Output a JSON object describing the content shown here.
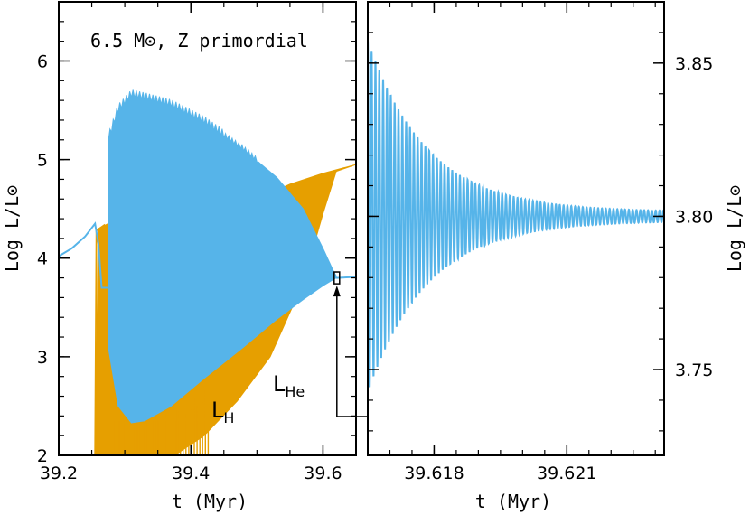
{
  "chart_data": [
    {
      "type": "line",
      "panel": "left",
      "title": "6.5 M⊙, Z primordial",
      "xlabel": "t (Myr)",
      "ylabel": "Log L/L⊙",
      "xlim": [
        39.2,
        39.65
      ],
      "ylim": [
        2.0,
        6.6
      ],
      "xticks": [
        39.2,
        39.4,
        39.6
      ],
      "xtick_labels": [
        "39.2",
        "39.4",
        "39.6"
      ],
      "yticks": [
        2,
        3,
        4,
        5,
        6
      ],
      "ytick_labels": [
        "2",
        "3",
        "4",
        "5",
        "6"
      ],
      "series": [
        {
          "name": "L_He",
          "label_main": "L",
          "label_sub": "He",
          "color": "#56b4e9",
          "baseline": [
            [
              39.2,
              4.02
            ],
            [
              39.22,
              4.1
            ],
            [
              39.24,
              4.22
            ],
            [
              39.255,
              4.35
            ],
            [
              39.26,
              4.15
            ],
            [
              39.265,
              3.7
            ],
            [
              39.275,
              3.7
            ]
          ],
          "envelope_upper": [
            [
              39.275,
              5.2
            ],
            [
              39.29,
              5.5
            ],
            [
              39.31,
              5.65
            ],
            [
              39.33,
              5.62
            ],
            [
              39.37,
              5.55
            ],
            [
              39.42,
              5.38
            ],
            [
              39.48,
              5.1
            ],
            [
              39.53,
              4.82
            ],
            [
              39.57,
              4.5
            ],
            [
              39.6,
              4.1
            ],
            [
              39.615,
              3.88
            ],
            [
              39.62,
              3.82
            ]
          ],
          "envelope_lower": [
            [
              39.275,
              3.1
            ],
            [
              39.29,
              2.5
            ],
            [
              39.31,
              2.33
            ],
            [
              39.33,
              2.35
            ],
            [
              39.37,
              2.5
            ],
            [
              39.42,
              2.78
            ],
            [
              39.48,
              3.1
            ],
            [
              39.53,
              3.38
            ],
            [
              39.57,
              3.58
            ],
            [
              39.6,
              3.72
            ],
            [
              39.615,
              3.78
            ],
            [
              39.62,
              3.8
            ]
          ],
          "tail": [
            [
              39.62,
              3.8
            ],
            [
              39.65,
              3.81
            ]
          ]
        },
        {
          "name": "L_H",
          "label_main": "L",
          "label_sub": "H",
          "color": "#e69f00",
          "envelope_upper": [
            [
              39.255,
              2.0
            ],
            [
              39.26,
              4.3
            ],
            [
              39.275,
              4.35
            ],
            [
              39.43,
              4.42
            ],
            [
              39.5,
              4.6
            ],
            [
              39.55,
              4.75
            ],
            [
              39.6,
              4.86
            ],
            [
              39.65,
              4.95
            ]
          ],
          "envelope_lower": [
            [
              39.275,
              2.0
            ],
            [
              39.33,
              2.0
            ],
            [
              39.38,
              2.02
            ],
            [
              39.42,
              2.2
            ],
            [
              39.47,
              2.55
            ],
            [
              39.52,
              3.0
            ],
            [
              39.57,
              3.75
            ],
            [
              39.6,
              4.45
            ],
            [
              39.62,
              4.88
            ]
          ]
        }
      ],
      "annotation": {
        "type": "zoom-box",
        "x": 39.621,
        "y_range": [
          3.74,
          3.86
        ]
      }
    },
    {
      "type": "line",
      "panel": "right",
      "xlabel": "t (Myr)",
      "ylabel": "Log L/L⊙",
      "xlim": [
        39.6165,
        39.6232
      ],
      "ylim": [
        3.722,
        3.87
      ],
      "xticks": [
        39.618,
        39.621
      ],
      "xtick_labels": [
        "39.618",
        "39.621"
      ],
      "yticks": [
        3.75,
        3.8,
        3.85
      ],
      "ytick_labels": [
        "3.75",
        "3.80",
        "3.85"
      ],
      "series": [
        {
          "name": "L_He oscillation",
          "color": "#56b4e9",
          "center": 3.8,
          "initial_amplitude": 0.056,
          "decay_time": 0.00135,
          "period": 8.68e-05,
          "t_start": 39.6165,
          "t_end": 39.6232
        }
      ]
    }
  ]
}
